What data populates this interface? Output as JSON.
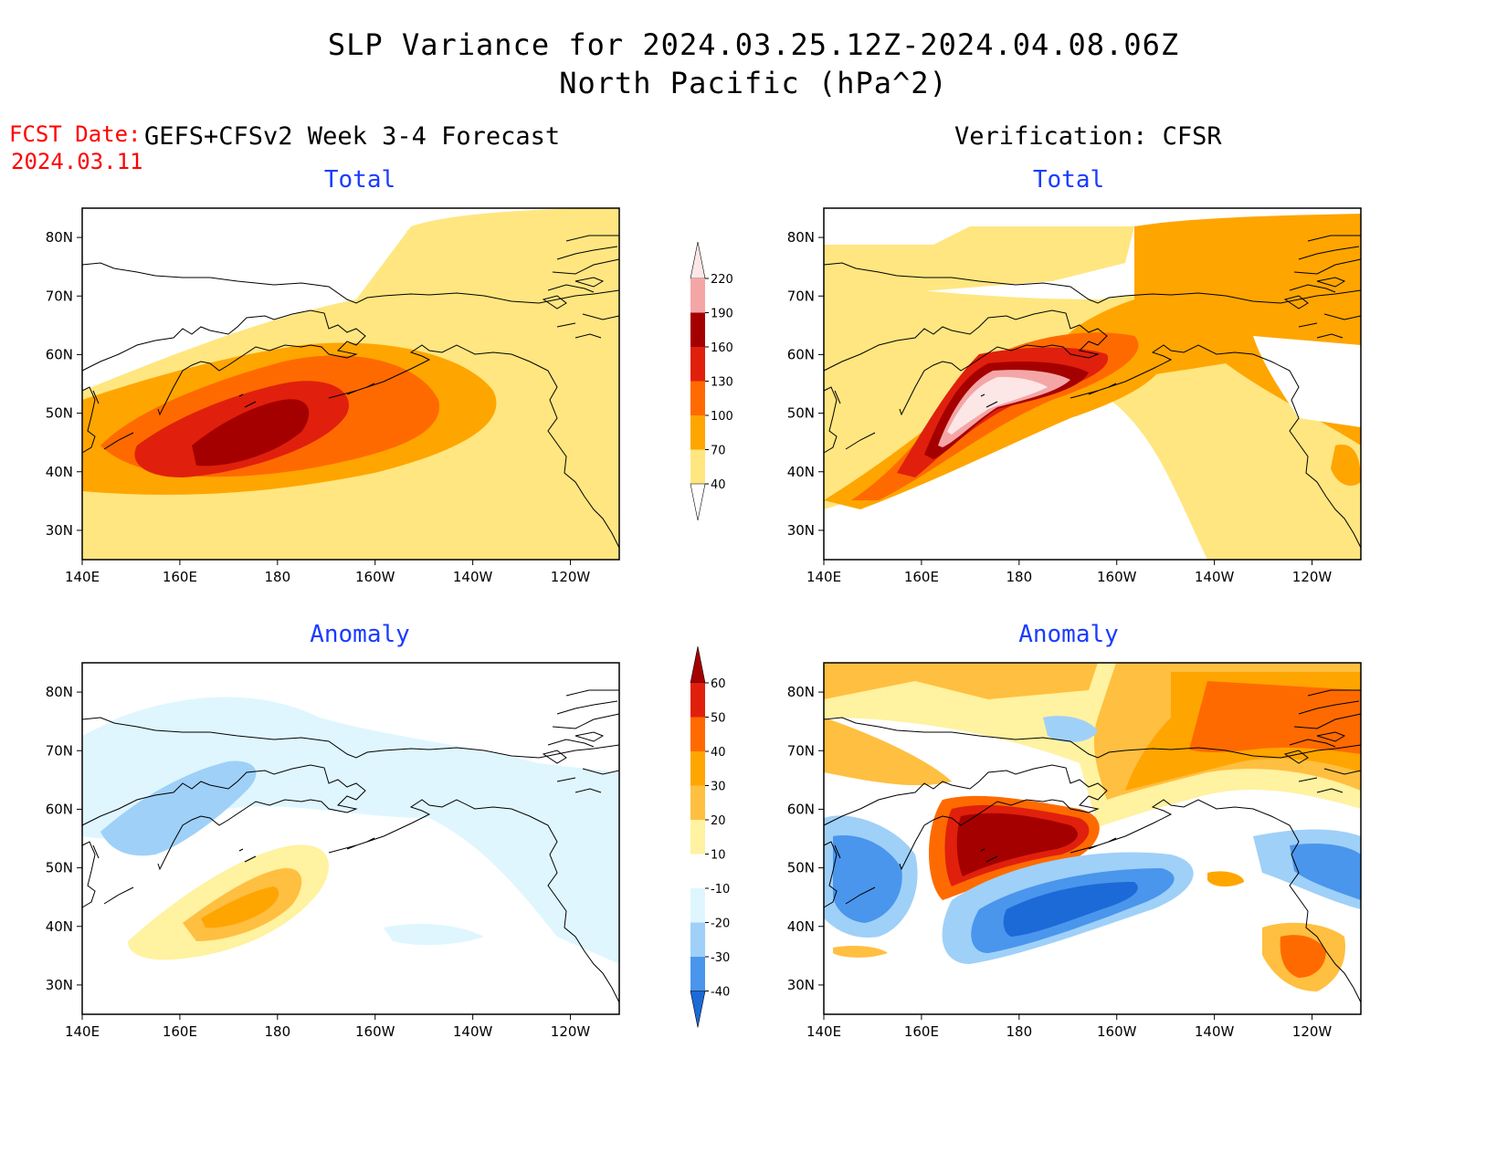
{
  "header": {
    "title_line1": "SLP Variance for 2024.03.25.12Z-2024.04.08.06Z",
    "title_line2": "North Pacific (hPa^2)",
    "fcst_label": "FCST Date:",
    "fcst_date": "2024.03.11",
    "left_heading": "GEFS+CFSv2 Week 3-4 Forecast",
    "right_heading": "Verification: CFSR"
  },
  "panels": {
    "forecast_total_title": "Total",
    "forecast_anomaly_title": "Anomaly",
    "verification_total_title": "Total",
    "verification_anomaly_title": "Anomaly"
  },
  "axes": {
    "lat_labels": [
      "80N",
      "70N",
      "60N",
      "50N",
      "40N",
      "30N"
    ],
    "lat_values": [
      80,
      70,
      60,
      50,
      40,
      30
    ],
    "lon_labels": [
      "140E",
      "160E",
      "180",
      "160W",
      "140W",
      "120W"
    ],
    "lon_values": [
      140,
      160,
      180,
      200,
      220,
      240
    ],
    "lat_range": [
      25,
      85
    ],
    "lon_range": [
      140,
      250
    ]
  },
  "legends": {
    "total": {
      "labels": [
        "220",
        "190",
        "160",
        "130",
        "100",
        "70",
        "40"
      ],
      "colors": [
        "#fde6e6",
        "#f4a6a6",
        "#a50000",
        "#e0200c",
        "#ff6a00",
        "#ffa500",
        "#ffe680"
      ]
    },
    "anomaly": {
      "labels": [
        "60",
        "50",
        "40",
        "30",
        "20",
        "10",
        "-10",
        "-20",
        "-30",
        "-40"
      ],
      "colors": [
        "#a50000",
        "#e0200c",
        "#ff6a00",
        "#ffa500",
        "#ffbf40",
        "#fff2a0",
        "#ffffff",
        "#dff6ff",
        "#9fd0f8",
        "#4a96ec",
        "#1b6ad8"
      ]
    }
  }
}
